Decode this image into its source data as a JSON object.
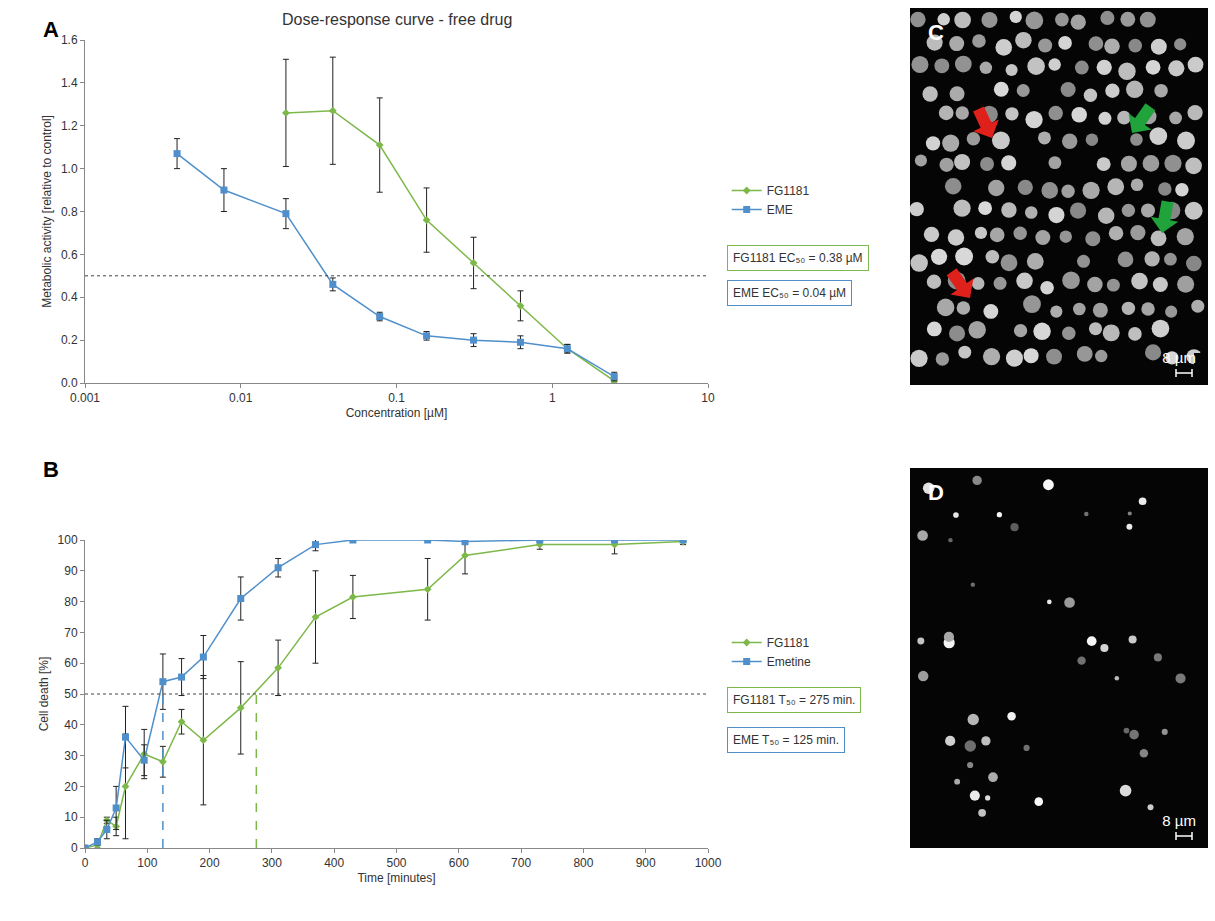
{
  "chart_data": [
    {
      "panel": "A",
      "type": "line",
      "title": "Dose-response curve - free drug",
      "x_label": "Concentration [µM]",
      "y_label": "Metabolic activity [relative to control]",
      "log": "x",
      "grid": false,
      "legend": "right",
      "xlim": [
        0.001,
        10
      ],
      "xticks": [
        0.001,
        0.01,
        0.1,
        1,
        10
      ],
      "ylim": [
        0,
        1.6
      ],
      "yticks": [
        {
          "value": 0,
          "label": "0.0"
        },
        0.2,
        0.4,
        0.6,
        0.8,
        {
          "value": 1,
          "label": "1.0"
        },
        1.2,
        1.4,
        1.6
      ],
      "threshold": 0.5,
      "series": [
        {
          "name": "FG1181",
          "color": "#7DB84A",
          "marker": "diamond",
          "line_style": "solid",
          "x": [
            0.0195,
            0.039,
            0.078,
            0.156,
            0.3125,
            0.625,
            1.25,
            2.5
          ],
          "values": [
            1.26,
            1.27,
            1.11,
            0.76,
            0.56,
            0.36,
            0.16,
            0.01
          ],
          "error": [
            0.25,
            0.25,
            0.22,
            0.15,
            0.12,
            0.07,
            0.02,
            0.01
          ],
          "ec50": 0.38,
          "annotation": "FG1181 EC₅₀ = 0.38 µM"
        },
        {
          "name": "EME",
          "color": "#4F8FCB",
          "marker": "square",
          "line_style": "solid",
          "x": [
            0.0039,
            0.0078,
            0.0195,
            0.039,
            0.078,
            0.156,
            0.3125,
            0.625,
            1.25,
            2.5
          ],
          "values": [
            1.07,
            0.9,
            0.79,
            0.46,
            0.31,
            0.22,
            0.2,
            0.19,
            0.16,
            0.03
          ],
          "error": [
            0.07,
            0.1,
            0.07,
            0.03,
            0.02,
            0.02,
            0.03,
            0.03,
            0.02,
            0.02
          ],
          "ec50": 0.04,
          "annotation": "EME EC₅₀ = 0.04 µM"
        }
      ]
    },
    {
      "panel": "B",
      "type": "line",
      "x_label": "Time [minutes]",
      "y_label": "Cell death [%]",
      "grid": false,
      "legend": "right",
      "xlim": [
        0,
        1000
      ],
      "xticks": [
        0,
        100,
        200,
        300,
        400,
        500,
        600,
        700,
        800,
        900,
        1000
      ],
      "ylim": [
        0,
        100
      ],
      "yticks": [
        0,
        10,
        20,
        30,
        40,
        50,
        60,
        70,
        80,
        90,
        100
      ],
      "threshold": 50,
      "series": [
        {
          "name": "FG1181",
          "color": "#7DB84A",
          "marker": "diamond",
          "line_style": "solid",
          "x": [
            0,
            20,
            35,
            50,
            65,
            95,
            125,
            155,
            190,
            250,
            310,
            370,
            430,
            550,
            610,
            730,
            850,
            960
          ],
          "values": [
            0,
            1,
            9,
            7,
            20,
            30.5,
            28,
            41,
            35,
            45.5,
            58.5,
            75,
            81.5,
            84,
            95,
            98.5,
            98.5,
            99.5
          ],
          "error": [
            0,
            1,
            1,
            3,
            17,
            8,
            5,
            4,
            21,
            15,
            9,
            15,
            7,
            10,
            6,
            1.5,
            3,
            1
          ],
          "t50": 275,
          "annotation": "FG1181 T₅₀ = 275 min."
        },
        {
          "name": "Emetine",
          "color": "#4F8FCB",
          "marker": "square",
          "line_style": "solid",
          "x": [
            0,
            20,
            35,
            50,
            65,
            95,
            125,
            155,
            190,
            250,
            310,
            370,
            430,
            550,
            610,
            730,
            850,
            960
          ],
          "values": [
            0,
            2,
            6,
            13,
            36,
            28.5,
            54,
            55.5,
            62,
            81,
            91,
            98.5,
            100,
            100,
            99.5,
            100,
            100,
            100
          ],
          "error": [
            0,
            1,
            3,
            7,
            10,
            5,
            9,
            6,
            7,
            7,
            3,
            2,
            0,
            0,
            1,
            0.5,
            0.5,
            0.5
          ],
          "t50": 125,
          "annotation": "EME T₅₀ = 125 min."
        }
      ]
    }
  ],
  "images": [
    {
      "panel": "C",
      "scale_bar": "8 µm"
    },
    {
      "panel": "D",
      "scale_bar": "8 µm"
    }
  ]
}
